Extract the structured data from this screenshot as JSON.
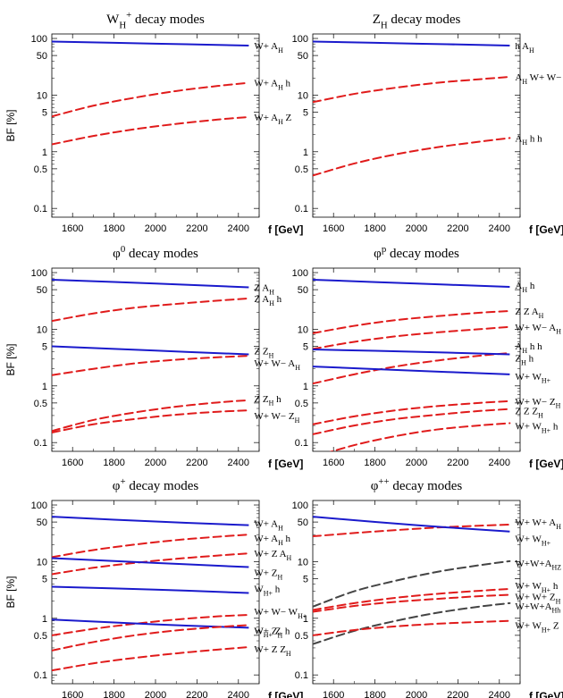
{
  "chart_data": [
    {
      "type": "line",
      "title": "W_H^+ decay modes",
      "ylabel": "BF [%]",
      "xlabel": "f [GeV]",
      "xlim": [
        1500,
        2500
      ],
      "ylim": [
        0.07,
        120
      ],
      "yscale": "log",
      "xticks": [
        "1600",
        "1800",
        "2000",
        "2200",
        "2400"
      ],
      "yticks": [
        "0.1",
        "0.5",
        "1",
        "5",
        "10",
        "50",
        "100"
      ],
      "series": [
        {
          "name": "W+ A_H",
          "color": "#1a1acc",
          "style": "solid",
          "x": [
            1500,
            2000,
            2450
          ],
          "y": [
            88,
            81,
            75
          ]
        },
        {
          "name": "W+ A_H h",
          "color": "#e01b1b",
          "style": "dashed",
          "x": [
            1500,
            1700,
            1900,
            2100,
            2300,
            2450
          ],
          "y": [
            4.2,
            6.5,
            9.0,
            11.8,
            14.5,
            16.5
          ]
        },
        {
          "name": "W+ A_H Z",
          "color": "#e01b1b",
          "style": "dashed",
          "x": [
            1500,
            1700,
            1900,
            2100,
            2300,
            2450
          ],
          "y": [
            1.35,
            1.9,
            2.5,
            3.1,
            3.7,
            4.1
          ]
        }
      ]
    },
    {
      "type": "line",
      "title": "Z_H decay modes",
      "ylabel": "",
      "xlabel": "f [GeV]",
      "xlim": [
        1500,
        2500
      ],
      "ylim": [
        0.07,
        120
      ],
      "yscale": "log",
      "xticks": [
        "1600",
        "1800",
        "2000",
        "2200",
        "2400"
      ],
      "yticks": [
        "0.1",
        "0.5",
        "1",
        "5",
        "10",
        "50",
        "100"
      ],
      "series": [
        {
          "name": "h A_H",
          "color": "#1a1acc",
          "style": "solid",
          "x": [
            1500,
            2000,
            2450
          ],
          "y": [
            88,
            81,
            75
          ]
        },
        {
          "name": "A_H W+ W−",
          "color": "#e01b1b",
          "style": "dashed",
          "x": [
            1500,
            1700,
            1900,
            2100,
            2300,
            2450
          ],
          "y": [
            7.5,
            10.5,
            13.5,
            16.5,
            19.0,
            21.0
          ]
        },
        {
          "name": "A_H h h",
          "color": "#e01b1b",
          "style": "dashed",
          "x": [
            1500,
            1700,
            1900,
            2100,
            2300,
            2450
          ],
          "y": [
            0.38,
            0.62,
            0.9,
            1.2,
            1.5,
            1.75
          ]
        }
      ]
    },
    {
      "type": "line",
      "title": "φ^0 decay modes",
      "ylabel": "BF [%]",
      "xlabel": "f [GeV]",
      "xlim": [
        1500,
        2500
      ],
      "ylim": [
        0.07,
        120
      ],
      "yscale": "log",
      "xticks": [
        "1600",
        "1800",
        "2000",
        "2200",
        "2400"
      ],
      "yticks": [
        "0.1",
        "0.5",
        "1",
        "5",
        "10",
        "50",
        "100"
      ],
      "series": [
        {
          "name": "Z A_H",
          "color": "#1a1acc",
          "style": "solid",
          "x": [
            1500,
            2000,
            2450
          ],
          "y": [
            75,
            64,
            55
          ]
        },
        {
          "name": "Z A_H h",
          "color": "#e01b1b",
          "style": "dashed",
          "x": [
            1500,
            1700,
            1900,
            2100,
            2300,
            2450
          ],
          "y": [
            14,
            19,
            24,
            28,
            32,
            35
          ]
        },
        {
          "name": "Z Z_H",
          "color": "#1a1acc",
          "style": "solid",
          "x": [
            1500,
            2000,
            2450
          ],
          "y": [
            5.0,
            4.2,
            3.6
          ]
        },
        {
          "name": "W+ W− A_H",
          "color": "#e01b1b",
          "style": "dashed",
          "x": [
            1500,
            1700,
            1900,
            2100,
            2300,
            2450
          ],
          "y": [
            1.55,
            2.0,
            2.5,
            2.9,
            3.2,
            3.4
          ]
        },
        {
          "name": "Z Z_H h",
          "color": "#e01b1b",
          "style": "dashed",
          "x": [
            1500,
            1700,
            1900,
            2100,
            2300,
            2450
          ],
          "y": [
            0.16,
            0.25,
            0.34,
            0.43,
            0.51,
            0.56
          ]
        },
        {
          "name": "W+ W− Z_H",
          "color": "#e01b1b",
          "style": "dashed",
          "x": [
            1500,
            1700,
            1900,
            2100,
            2300,
            2450
          ],
          "y": [
            0.15,
            0.21,
            0.26,
            0.31,
            0.35,
            0.37
          ]
        }
      ]
    },
    {
      "type": "line",
      "title": "φ^p decay modes",
      "ylabel": "",
      "xlabel": "f [GeV]",
      "xlim": [
        1500,
        2500
      ],
      "ylim": [
        0.07,
        120
      ],
      "yscale": "log",
      "xticks": [
        "1600",
        "1800",
        "2000",
        "2200",
        "2400"
      ],
      "yticks": [
        "0.1",
        "0.5",
        "1",
        "5",
        "10",
        "50",
        "100"
      ],
      "series": [
        {
          "name": "A_H h",
          "color": "#1a1acc",
          "style": "solid",
          "x": [
            1500,
            2000,
            2450
          ],
          "y": [
            75,
            64,
            56
          ]
        },
        {
          "name": "Z Z A_H",
          "color": "#e01b1b",
          "style": "dashed",
          "x": [
            1500,
            1700,
            1900,
            2100,
            2300,
            2450
          ],
          "y": [
            8.5,
            11.5,
            14.5,
            17.0,
            19.5,
            21.0
          ]
        },
        {
          "name": "W+ W− A_H",
          "color": "#e01b1b",
          "style": "dashed",
          "x": [
            1500,
            1700,
            1900,
            2100,
            2300,
            2450
          ],
          "y": [
            4.5,
            6.0,
            7.5,
            8.8,
            10.0,
            11.0
          ]
        },
        {
          "name": "A_H h h",
          "color": "#e01b1b",
          "style": "dashed",
          "x": [
            1500,
            1700,
            1900,
            2100,
            2300,
            2450
          ],
          "y": [
            1.1,
            1.6,
            2.2,
            2.8,
            3.4,
            3.8
          ]
        },
        {
          "name": "Z_H h",
          "color": "#1a1acc",
          "style": "solid",
          "x": [
            1500,
            2000,
            2450
          ],
          "y": [
            4.4,
            4.0,
            3.6
          ]
        },
        {
          "name": "W+ W_H+",
          "color": "#1a1acc",
          "style": "solid",
          "x": [
            1500,
            2000,
            2450
          ],
          "y": [
            2.2,
            1.85,
            1.6
          ]
        },
        {
          "name": "W+ W− Z_H",
          "color": "#e01b1b",
          "style": "dashed",
          "x": [
            1500,
            1700,
            1900,
            2100,
            2300,
            2450
          ],
          "y": [
            0.21,
            0.29,
            0.37,
            0.44,
            0.5,
            0.54
          ]
        },
        {
          "name": "Z Z Z_H",
          "color": "#e01b1b",
          "style": "dashed",
          "x": [
            1500,
            1700,
            1900,
            2100,
            2300,
            2450
          ],
          "y": [
            0.14,
            0.2,
            0.26,
            0.31,
            0.36,
            0.39
          ]
        },
        {
          "name": "W+ W_H+ h",
          "color": "#e01b1b",
          "style": "dashed",
          "x": [
            1500,
            1700,
            1900,
            2100,
            2300,
            2450
          ],
          "y": [
            0.055,
            0.09,
            0.13,
            0.17,
            0.2,
            0.22
          ]
        }
      ]
    },
    {
      "type": "line",
      "title": "φ^+ decay modes",
      "ylabel": "BF [%]",
      "xlabel": "f [GeV]",
      "xlim": [
        1500,
        2500
      ],
      "ylim": [
        0.07,
        120
      ],
      "yscale": "log",
      "xticks": [
        "1600",
        "1800",
        "2000",
        "2200",
        "2400"
      ],
      "yticks": [
        "0.1",
        "0.5",
        "1",
        "5",
        "10",
        "50",
        "100"
      ],
      "series": [
        {
          "name": "W+ A_H",
          "color": "#1a1acc",
          "style": "solid",
          "x": [
            1500,
            2000,
            2450
          ],
          "y": [
            62,
            51,
            44
          ]
        },
        {
          "name": "W+ A_H h",
          "color": "#e01b1b",
          "style": "dashed",
          "x": [
            1500,
            1700,
            1900,
            2100,
            2300,
            2450
          ],
          "y": [
            12,
            16,
            20,
            24,
            27.5,
            30
          ]
        },
        {
          "name": "W+ Z A_H",
          "color": "#e01b1b",
          "style": "dashed",
          "x": [
            1500,
            1700,
            1900,
            2100,
            2300,
            2450
          ],
          "y": [
            6.0,
            7.8,
            9.5,
            11.2,
            12.8,
            14
          ]
        },
        {
          "name": "W+ Z_H",
          "color": "#1a1acc",
          "style": "solid",
          "x": [
            1500,
            2000,
            2450
          ],
          "y": [
            11.5,
            9.5,
            8.0
          ]
        },
        {
          "name": "W_H+ h",
          "color": "#1a1acc",
          "style": "solid",
          "x": [
            1500,
            2000,
            2450
          ],
          "y": [
            3.6,
            3.2,
            2.8
          ]
        },
        {
          "name": "W+ W− W_H+",
          "color": "#e01b1b",
          "style": "dashed",
          "x": [
            1500,
            1700,
            1900,
            2100,
            2300,
            2450
          ],
          "y": [
            0.5,
            0.65,
            0.8,
            0.95,
            1.08,
            1.15
          ]
        },
        {
          "name": "W+ Z_H h",
          "color": "#1a1acc",
          "style": "solid",
          "x": [
            1500,
            2000,
            2450
          ],
          "y": [
            0.95,
            0.78,
            0.68
          ]
        },
        {
          "name": "W_H+ Z",
          "color": "#e01b1b",
          "style": "dashed",
          "x": [
            1500,
            1700,
            1900,
            2100,
            2300,
            2450
          ],
          "y": [
            0.27,
            0.38,
            0.5,
            0.61,
            0.7,
            0.76
          ]
        },
        {
          "name": "W+ Z Z_H",
          "color": "#e01b1b",
          "style": "dashed",
          "x": [
            1500,
            1700,
            1900,
            2100,
            2300,
            2450
          ],
          "y": [
            0.12,
            0.16,
            0.2,
            0.24,
            0.28,
            0.31
          ]
        }
      ]
    },
    {
      "type": "line",
      "title": "φ^++ decay modes",
      "ylabel": "",
      "xlabel": "f [GeV]",
      "xlim": [
        1500,
        2500
      ],
      "ylim": [
        0.07,
        120
      ],
      "yscale": "log",
      "xticks": [
        "1600",
        "1800",
        "2000",
        "2200",
        "2400"
      ],
      "yticks": [
        "0.1",
        "0.5",
        "1",
        "5",
        "10",
        "50",
        "100"
      ],
      "series": [
        {
          "name": "W+ W+ A_H",
          "color": "#e01b1b",
          "style": "dashed",
          "x": [
            1500,
            1700,
            1900,
            2100,
            2300,
            2450
          ],
          "y": [
            28,
            32,
            36,
            40,
            43,
            45
          ]
        },
        {
          "name": "W+ W_H+",
          "color": "#1a1acc",
          "style": "solid",
          "x": [
            1500,
            2000,
            2450
          ],
          "y": [
            62,
            44,
            34
          ]
        },
        {
          "name": "W+W+A_HZ",
          "color": "#444444",
          "style": "dashed",
          "x": [
            1500,
            1700,
            1900,
            2100,
            2300,
            2450
          ],
          "y": [
            1.6,
            3.0,
            4.6,
            6.6,
            8.6,
            10.2
          ]
        },
        {
          "name": "W+ W_H+ h",
          "color": "#e01b1b",
          "style": "dashed",
          "x": [
            1500,
            1700,
            1900,
            2100,
            2300,
            2450
          ],
          "y": [
            1.4,
            1.85,
            2.3,
            2.7,
            3.05,
            3.3
          ]
        },
        {
          "name": "W+ W+ Z_H",
          "color": "#e01b1b",
          "style": "dashed",
          "x": [
            1500,
            1700,
            1900,
            2100,
            2300,
            2450
          ],
          "y": [
            1.3,
            1.65,
            1.95,
            2.2,
            2.45,
            2.6
          ]
        },
        {
          "name": "W+W+A_Hh",
          "color": "#444444",
          "style": "dashed",
          "x": [
            1500,
            1700,
            1900,
            2100,
            2300,
            2450
          ],
          "y": [
            0.35,
            0.6,
            0.9,
            1.25,
            1.6,
            1.85
          ]
        },
        {
          "name": "W+ W_H+ Z",
          "color": "#e01b1b",
          "style": "dashed",
          "x": [
            1500,
            1700,
            1900,
            2100,
            2300,
            2450
          ],
          "y": [
            0.5,
            0.62,
            0.72,
            0.8,
            0.86,
            0.9
          ]
        }
      ]
    }
  ]
}
